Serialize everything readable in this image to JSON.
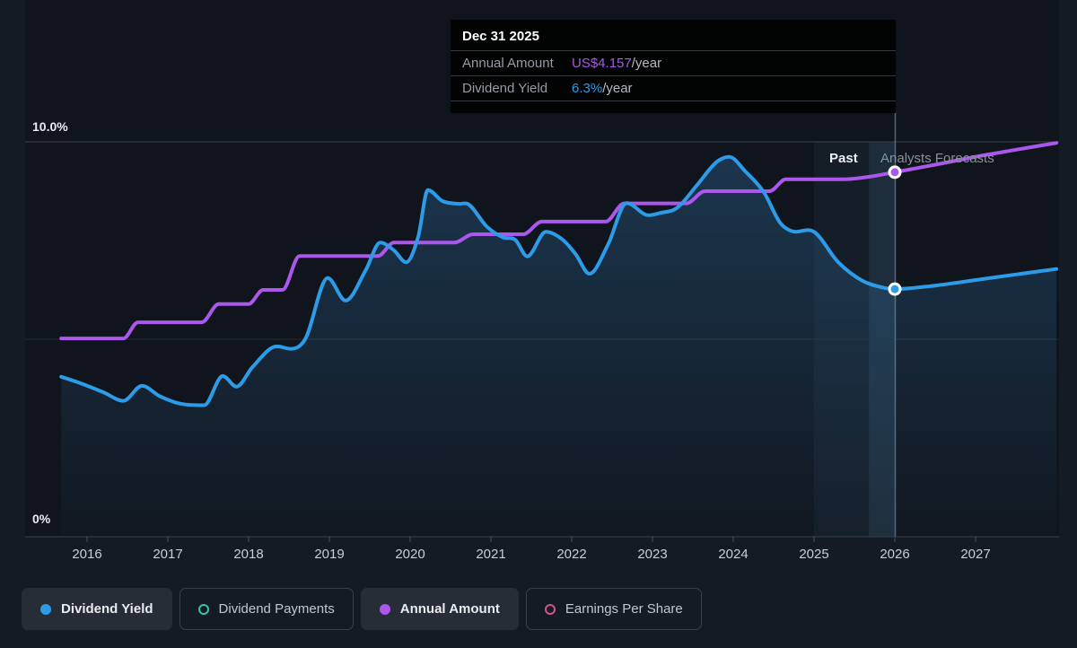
{
  "colors": {
    "blue": "#2d9ce8",
    "purple": "#ab57eb",
    "teal": "#31c5ad",
    "pink": "#d4538f",
    "page_bg": "#151b24",
    "plot_bg": "#10151d",
    "grid_strong": "#3a4149",
    "grid_faint": "#232a33",
    "tick": "#4a5158",
    "x_label": "#c9ced3",
    "hover_line": "rgba(140,185,225,0.5)"
  },
  "tooltip": {
    "title": "Dec 31 2025",
    "rows": [
      {
        "label": "Annual Amount",
        "value": "US$4.157",
        "suffix": "/year"
      },
      {
        "label": "Dividend Yield",
        "value": "6.3%",
        "suffix": "/year"
      }
    ]
  },
  "annotations": {
    "past": "Past",
    "forecast": "Analysts Forecasts"
  },
  "y_axis": {
    "top": "10.0%",
    "bottom": "0%"
  },
  "legend": [
    {
      "label": "Dividend Yield",
      "active": true,
      "marker": "filled-blue"
    },
    {
      "label": "Dividend Payments",
      "active": false,
      "marker": "ring-teal"
    },
    {
      "label": "Annual Amount",
      "active": true,
      "marker": "filled-purple"
    },
    {
      "label": "Earnings Per Share",
      "active": false,
      "marker": "ring-pink"
    }
  ],
  "chart_data": {
    "type": "line",
    "x_ticks": [
      2016,
      2017,
      2018,
      2019,
      2020,
      2021,
      2022,
      2023,
      2024,
      2025,
      2026,
      2027
    ],
    "x_range": [
      2015.68,
      2028.0
    ],
    "ylim": [
      0,
      10
    ],
    "y_gridlines_pct": [
      10,
      5,
      0
    ],
    "grid": "horizontal-only",
    "legend_position": "bottom",
    "past_forecast_divider_year": 2026.0,
    "highlight_band_years": [
      2025.0,
      2026.0
    ],
    "hover_band_years": [
      2025.68,
      2026.0
    ],
    "tooltip_point": {
      "date": "Dec 31 2025",
      "annual_amount_usd_per_year": 4.157,
      "dividend_yield_pct": 6.3
    },
    "series": [
      {
        "name": "Dividend Yield",
        "unit": "percent",
        "color": "#2d9ce8",
        "area": true,
        "points": [
          [
            2015.68,
            4.05
          ],
          [
            2015.9,
            3.9
          ],
          [
            2016.2,
            3.66
          ],
          [
            2016.45,
            3.44
          ],
          [
            2016.68,
            3.82
          ],
          [
            2016.9,
            3.56
          ],
          [
            2017.15,
            3.37
          ],
          [
            2017.45,
            3.33
          ],
          [
            2017.68,
            4.07
          ],
          [
            2017.85,
            3.8
          ],
          [
            2018.05,
            4.3
          ],
          [
            2018.35,
            4.82
          ],
          [
            2018.52,
            4.76
          ],
          [
            2018.7,
            5.0
          ],
          [
            2018.98,
            6.55
          ],
          [
            2019.2,
            5.98
          ],
          [
            2019.45,
            6.75
          ],
          [
            2019.63,
            7.45
          ],
          [
            2019.8,
            7.25
          ],
          [
            2019.95,
            6.95
          ],
          [
            2020.1,
            7.6
          ],
          [
            2020.22,
            8.78
          ],
          [
            2020.4,
            8.5
          ],
          [
            2020.6,
            8.43
          ],
          [
            2020.72,
            8.42
          ],
          [
            2020.95,
            7.85
          ],
          [
            2021.15,
            7.58
          ],
          [
            2021.3,
            7.52
          ],
          [
            2021.45,
            7.1
          ],
          [
            2021.68,
            7.72
          ],
          [
            2021.9,
            7.5
          ],
          [
            2022.05,
            7.15
          ],
          [
            2022.22,
            6.66
          ],
          [
            2022.45,
            7.4
          ],
          [
            2022.68,
            8.45
          ],
          [
            2022.95,
            8.14
          ],
          [
            2023.1,
            8.2
          ],
          [
            2023.3,
            8.32
          ],
          [
            2023.55,
            8.9
          ],
          [
            2023.8,
            9.5
          ],
          [
            2023.95,
            9.62
          ],
          [
            2024.15,
            9.25
          ],
          [
            2024.38,
            8.72
          ],
          [
            2024.58,
            7.95
          ],
          [
            2024.72,
            7.74
          ],
          [
            2025.0,
            7.72
          ],
          [
            2025.3,
            6.95
          ],
          [
            2025.6,
            6.48
          ],
          [
            2025.85,
            6.31
          ],
          [
            2026.0,
            6.27
          ],
          [
            2026.5,
            6.36
          ],
          [
            2027.0,
            6.5
          ],
          [
            2027.5,
            6.64
          ],
          [
            2028.0,
            6.78
          ]
        ]
      },
      {
        "name": "Annual Amount",
        "unit": "plotted-percent-scale",
        "color": "#ab57eb",
        "area": false,
        "points": [
          [
            2015.68,
            5.02
          ],
          [
            2016.45,
            5.02
          ],
          [
            2016.63,
            5.43
          ],
          [
            2017.42,
            5.43
          ],
          [
            2017.63,
            5.89
          ],
          [
            2018.0,
            5.89
          ],
          [
            2018.18,
            6.25
          ],
          [
            2018.42,
            6.25
          ],
          [
            2018.63,
            7.11
          ],
          [
            2019.6,
            7.11
          ],
          [
            2019.8,
            7.45
          ],
          [
            2020.55,
            7.45
          ],
          [
            2020.78,
            7.66
          ],
          [
            2021.4,
            7.66
          ],
          [
            2021.63,
            7.98
          ],
          [
            2022.42,
            7.98
          ],
          [
            2022.65,
            8.44
          ],
          [
            2023.42,
            8.44
          ],
          [
            2023.65,
            8.75
          ],
          [
            2024.45,
            8.75
          ],
          [
            2024.65,
            9.05
          ],
          [
            2025.35,
            9.05
          ],
          [
            2025.7,
            9.12
          ],
          [
            2026.0,
            9.23
          ],
          [
            2026.5,
            9.42
          ],
          [
            2027.0,
            9.62
          ],
          [
            2027.5,
            9.8
          ],
          [
            2028.0,
            9.97
          ]
        ]
      }
    ],
    "markers": [
      {
        "series": "Annual Amount",
        "year": 2026.0,
        "pct": 9.23
      },
      {
        "series": "Dividend Yield",
        "year": 2026.0,
        "pct": 6.27
      }
    ]
  }
}
